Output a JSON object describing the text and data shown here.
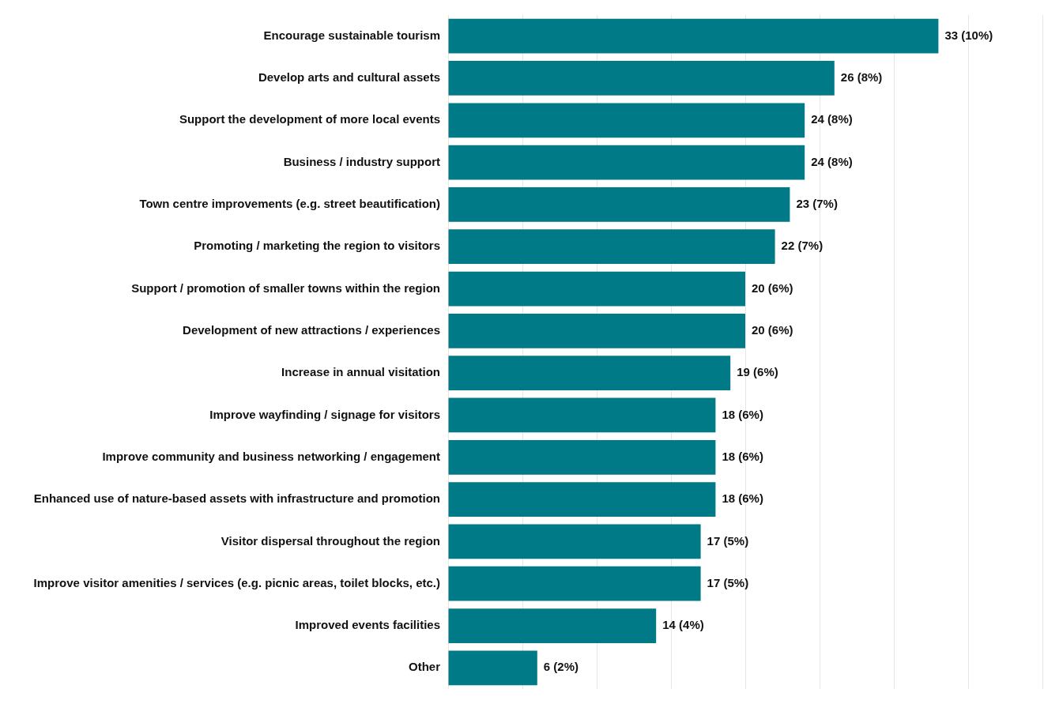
{
  "chart_data": {
    "type": "bar",
    "orientation": "horizontal",
    "categories": [
      "Encourage sustainable tourism",
      "Develop arts and cultural assets",
      "Support the development of more local events",
      "Business / industry support",
      "Town centre improvements (e.g. street beautification)",
      "Promoting / marketing the region to visitors",
      "Support / promotion of smaller towns within the region",
      "Development of new attractions / experiences",
      "Increase in annual visitation",
      "Improve wayfinding / signage for visitors",
      "Improve community and business networking / engagement",
      "Enhanced use of nature-based assets with infrastructure and promotion",
      "Visitor dispersal throughout the region",
      "Improve visitor amenities / services (e.g. picnic areas, toilet blocks, etc.)",
      "Improved events facilities",
      "Other"
    ],
    "values": [
      33,
      26,
      24,
      24,
      23,
      22,
      20,
      20,
      19,
      18,
      18,
      18,
      17,
      17,
      14,
      6
    ],
    "value_labels": [
      "33 (10%)",
      "26 (8%)",
      "24 (8%)",
      "24 (8%)",
      "23 (7%)",
      "22 (7%)",
      "20 (6%)",
      "20 (6%)",
      "19 (6%)",
      "18 (6%)",
      "18 (6%)",
      "18 (6%)",
      "17 (5%)",
      "17 (5%)",
      "14 (4%)",
      "6 (2%)"
    ],
    "color": "#007a87",
    "xlim": [
      0,
      40
    ],
    "xticks": [
      {
        "value": 0,
        "label": null
      },
      {
        "value": 5,
        "label": null
      },
      {
        "value": 10,
        "label": null
      },
      {
        "value": 15,
        "label": null
      },
      {
        "value": 20,
        "label": null
      },
      {
        "value": 25,
        "label": null
      },
      {
        "value": 30,
        "label": null
      },
      {
        "value": 35,
        "label": null
      },
      {
        "value": 40,
        "label": null
      }
    ],
    "grid": "x",
    "tick_labels": "y"
  }
}
